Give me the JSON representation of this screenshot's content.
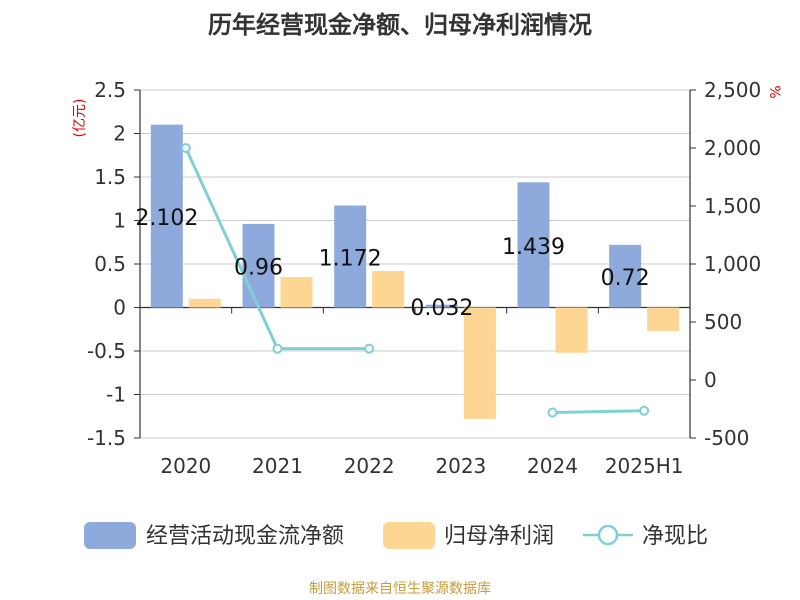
{
  "chart_data": {
    "type": "bar",
    "title": "历年经营现金净额、归母净利润情况",
    "categories": [
      "2020",
      "2021",
      "2022",
      "2023",
      "2024",
      "2025H1"
    ],
    "left_axis": {
      "unit": "(亿元)",
      "ylim": [
        -1.5,
        2.5
      ],
      "ticks": [
        "2.5",
        "2",
        "1.5",
        "1",
        "0.5",
        "0",
        "-0.5",
        "-1",
        "-1.5"
      ],
      "tick_values": [
        2.5,
        2,
        1.5,
        1,
        0.5,
        0,
        -0.5,
        -1,
        -1.5
      ]
    },
    "right_axis": {
      "unit": "%",
      "ylim": [
        -500,
        2500
      ],
      "ticks": [
        "2,500",
        "2,000",
        "1,500",
        "1,000",
        "500",
        "0",
        "-500"
      ],
      "tick_values": [
        2500,
        2000,
        1500,
        1000,
        500,
        0,
        -500
      ]
    },
    "series": [
      {
        "name": "经营活动现金流净额",
        "type": "bar",
        "axis": "left",
        "color": "#8eaadc",
        "values": [
          2.102,
          0.96,
          1.172,
          0.032,
          1.439,
          0.72
        ],
        "labels": [
          "2.102",
          "0.96",
          "1.172",
          "0.032",
          "1.439",
          "0.72"
        ]
      },
      {
        "name": "归母净利润",
        "type": "bar",
        "axis": "left",
        "color": "#fdd693",
        "values": [
          0.1,
          0.35,
          0.42,
          -1.28,
          -0.52,
          -0.27
        ]
      },
      {
        "name": "净现比",
        "type": "line",
        "axis": "right",
        "color": "#7fd0d6",
        "values": [
          2000,
          270,
          270,
          null,
          -280,
          -265
        ]
      }
    ],
    "grid": true,
    "legend_position": "bottom"
  },
  "source": "制图数据来自恒生聚源数据库"
}
